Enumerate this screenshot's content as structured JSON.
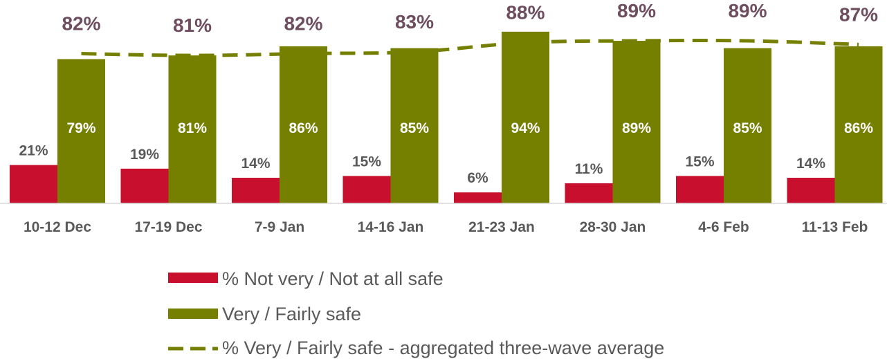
{
  "chart_data": {
    "type": "bar",
    "categories": [
      "10-12 Dec",
      "17-19 Dec",
      "7-9 Jan",
      "14-16 Jan",
      "21-23 Jan",
      "28-30 Jan",
      "4-6 Feb",
      "11-13 Feb"
    ],
    "series": [
      {
        "name": "% Not very / Not at all safe",
        "type": "bar",
        "color": "#c8102e",
        "values": [
          21,
          19,
          14,
          15,
          6,
          11,
          15,
          14
        ],
        "labels": [
          "21%",
          "19%",
          "14%",
          "15%",
          "6%",
          "11%",
          "15%",
          "14%"
        ]
      },
      {
        "name": "Very / Fairly safe",
        "type": "bar",
        "color": "#758000",
        "values": [
          79,
          81,
          86,
          85,
          94,
          89,
          85,
          86
        ],
        "labels": [
          "79%",
          "81%",
          "86%",
          "85%",
          "94%",
          "89%",
          "85%",
          "86%"
        ]
      },
      {
        "name": "% Very / Fairly safe - aggregated three-wave average",
        "type": "line",
        "style": "dashed",
        "color": "#758000",
        "values": [
          82,
          81,
          82,
          83,
          88,
          89,
          89,
          87
        ],
        "labels": [
          "82%",
          "81%",
          "82%",
          "83%",
          "88%",
          "89%",
          "89%",
          "87%"
        ]
      }
    ],
    "ylim": [
      0,
      100
    ],
    "grid": false,
    "legend_position": "bottom"
  }
}
